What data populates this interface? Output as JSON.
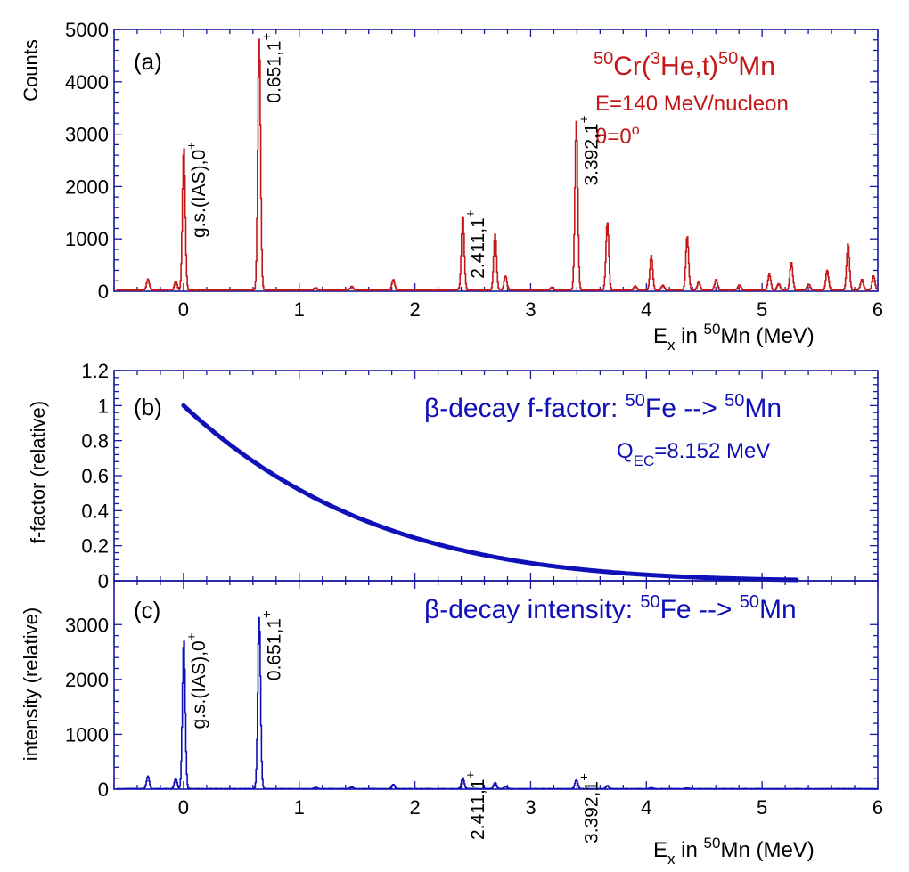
{
  "colors": {
    "red": "#c41818",
    "blue": "#1010b8",
    "axis": "#1a1aa0"
  },
  "chart_data": [
    {
      "panel": "(a)",
      "type": "line",
      "ylabel": "Counts",
      "xlabel_main": "E",
      "xlabel_sub": "x",
      "xlabel_mid": " in ",
      "xlabel_sup": "50",
      "xlabel_end": "Mn (MeV)",
      "xlim": [
        -0.6,
        6.0
      ],
      "ylim": [
        0,
        5000
      ],
      "xticks": [
        "0",
        "1",
        "2",
        "3",
        "4",
        "5",
        "6"
      ],
      "yticks": [
        "0",
        "1000",
        "2000",
        "3000",
        "4000",
        "5000"
      ],
      "color": "#c41818",
      "baseline": 25,
      "peaks": [
        {
          "x": -0.31,
          "y": 200
        },
        {
          "x": -0.07,
          "y": 160
        },
        {
          "x": 0.0,
          "y": 2720
        },
        {
          "x": 0.651,
          "y": 4800
        },
        {
          "x": 1.14,
          "y": 40
        },
        {
          "x": 1.45,
          "y": 60
        },
        {
          "x": 1.81,
          "y": 200
        },
        {
          "x": 2.411,
          "y": 1420
        },
        {
          "x": 2.69,
          "y": 1070
        },
        {
          "x": 2.78,
          "y": 270
        },
        {
          "x": 3.18,
          "y": 50
        },
        {
          "x": 3.392,
          "y": 3220
        },
        {
          "x": 3.66,
          "y": 1290
        },
        {
          "x": 3.9,
          "y": 70
        },
        {
          "x": 4.04,
          "y": 650
        },
        {
          "x": 4.14,
          "y": 90
        },
        {
          "x": 4.35,
          "y": 1020
        },
        {
          "x": 4.45,
          "y": 150
        },
        {
          "x": 4.6,
          "y": 200
        },
        {
          "x": 4.8,
          "y": 100
        },
        {
          "x": 5.06,
          "y": 300
        },
        {
          "x": 5.14,
          "y": 120
        },
        {
          "x": 5.25,
          "y": 540
        },
        {
          "x": 5.4,
          "y": 110
        },
        {
          "x": 5.56,
          "y": 370
        },
        {
          "x": 5.74,
          "y": 880
        },
        {
          "x": 5.86,
          "y": 200
        },
        {
          "x": 5.96,
          "y": 260
        }
      ],
      "peak_labels": [
        {
          "x": 0.0,
          "text": "g.s.(IAS),0",
          "sup": "+"
        },
        {
          "x": 0.651,
          "text": "0.651,1",
          "sup": "+"
        },
        {
          "x": 2.411,
          "text": "2.411,1",
          "sup": "+"
        },
        {
          "x": 3.392,
          "text": "3.392,1",
          "sup": "+"
        }
      ],
      "reaction": {
        "p1": "50",
        "p2": "Cr(",
        "p3": "3",
        "p4": "He,t)",
        "p5": "50",
        "p6": "Mn"
      },
      "energy": "E=140 MeV/nucleon",
      "angle": {
        "theta": "θ=0",
        "deg": "o"
      }
    },
    {
      "panel": "(b)",
      "type": "line",
      "ylabel": "f-factor (relative)",
      "xlim": [
        -0.6,
        6.0
      ],
      "ylim": [
        0,
        1.2
      ],
      "yticks": [
        "0",
        "0.2",
        "0.4",
        "0.6",
        "0.8",
        "1",
        "1.2"
      ],
      "color": "#1010b8",
      "curve": {
        "x_start": 0.0,
        "x_end": 5.3,
        "q_ec": 8.152
      },
      "title_parts": {
        "t1": "β-decay f-factor: ",
        "s1": "50",
        "t2": "Fe --> ",
        "s2": "50",
        "t3": "Mn"
      },
      "q_parts": {
        "q": "Q",
        "sub": "EC",
        "rest": "=8.152 MeV"
      }
    },
    {
      "panel": "(c)",
      "type": "line",
      "ylabel": "intensity (relative)",
      "xlabel_main": "E",
      "xlabel_sub": "x",
      "xlabel_mid": " in ",
      "xlabel_sup": "50",
      "xlabel_end": "Mn (MeV)",
      "xlim": [
        -0.6,
        6.0
      ],
      "ylim": [
        0,
        3800
      ],
      "xticks": [
        "0",
        "1",
        "2",
        "3",
        "4",
        "5",
        "6"
      ],
      "yticks": [
        "0",
        "1000",
        "2000",
        "3000"
      ],
      "color": "#1010b8",
      "baseline": 8,
      "peaks": [
        {
          "x": -0.31,
          "y": 230
        },
        {
          "x": -0.07,
          "y": 180
        },
        {
          "x": 0.0,
          "y": 2720
        },
        {
          "x": 0.651,
          "y": 3130
        },
        {
          "x": 1.14,
          "y": 20
        },
        {
          "x": 1.45,
          "y": 30
        },
        {
          "x": 1.81,
          "y": 80
        },
        {
          "x": 2.411,
          "y": 200
        },
        {
          "x": 2.69,
          "y": 110
        },
        {
          "x": 2.78,
          "y": 40
        },
        {
          "x": 3.392,
          "y": 160
        },
        {
          "x": 3.66,
          "y": 55
        },
        {
          "x": 4.04,
          "y": 15
        },
        {
          "x": 4.35,
          "y": 15
        }
      ],
      "peak_labels": [
        {
          "x": 0.0,
          "text": "g.s.(IAS),0",
          "sup": "+"
        },
        {
          "x": 0.651,
          "text": "0.651,1",
          "sup": "+"
        },
        {
          "x": 2.411,
          "text": "2.411,1",
          "sup": "+"
        },
        {
          "x": 3.392,
          "text": "3.392,1",
          "sup": "+"
        }
      ],
      "title_parts": {
        "t1": "β-decay intensity: ",
        "s1": "50",
        "t2": "Fe --> ",
        "s2": "50",
        "t3": "Mn"
      }
    }
  ]
}
